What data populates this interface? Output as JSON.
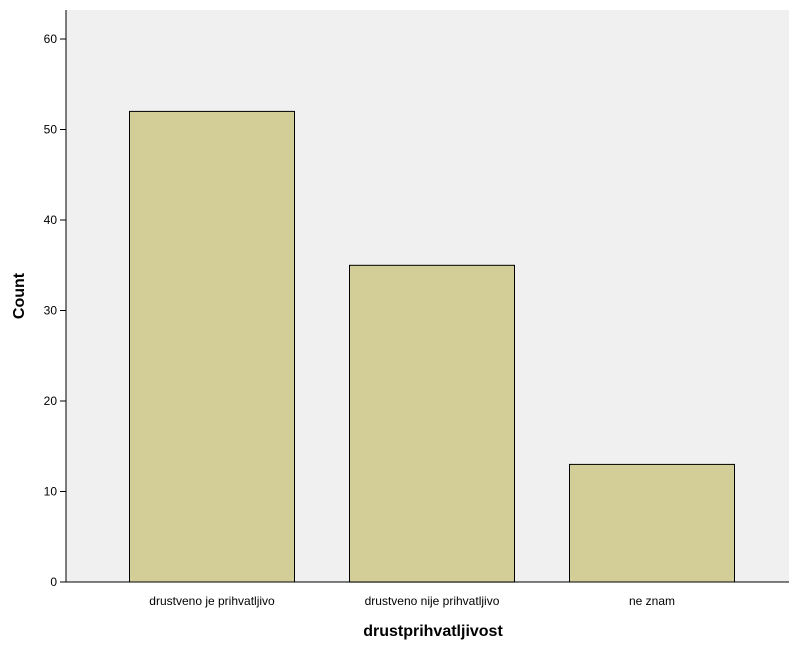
{
  "chart_data": {
    "type": "bar",
    "categories": [
      "drustveno je prihvatljivo",
      "drustveno nije prihvatljivo",
      "ne znam"
    ],
    "values": [
      52,
      35,
      13
    ],
    "title": "",
    "xlabel": "drustprihvatljivost",
    "ylabel": "Count",
    "ylim": [
      0,
      60
    ],
    "yticks": [
      0,
      10,
      20,
      30,
      40,
      50,
      60
    ],
    "grid": false,
    "colors": {
      "bar_fill": "#d3ce98",
      "bar_stroke": "#000000",
      "plot_background": "#f0f0f0",
      "axis": "#000000"
    }
  }
}
